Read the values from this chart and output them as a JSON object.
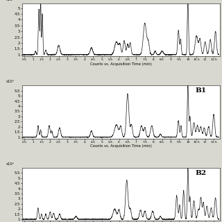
{
  "x_min": 0.5,
  "x_max": 11.75,
  "x_ticks": [
    0.5,
    1.0,
    1.5,
    2.0,
    2.5,
    3.0,
    3.5,
    4.0,
    4.5,
    5.0,
    5.5,
    6.0,
    6.5,
    7.0,
    7.5,
    8.0,
    8.5,
    9.0,
    9.5,
    10.0,
    10.5,
    11.0,
    11.5
  ],
  "xlabel": "Counts vs. Acquisition Time (min)",
  "panel1_ylim": [
    0.85,
    5.4
  ],
  "panel1_yticks": [
    1.0,
    1.5,
    2.0,
    2.5,
    3.0,
    3.5,
    4.0,
    4.5,
    5.0
  ],
  "panel2_ylim": [
    0.85,
    6.0
  ],
  "panel2_yticks": [
    1.0,
    1.5,
    2.0,
    2.5,
    3.0,
    3.5,
    4.0,
    4.5,
    5.0,
    5.5
  ],
  "panel3_ylim": [
    0.85,
    6.0
  ],
  "panel3_yticks": [
    1.0,
    1.5,
    2.0,
    2.5,
    3.0,
    3.5,
    4.0,
    4.5,
    5.0,
    5.5
  ],
  "label_B1": "B1",
  "label_B2": "B2",
  "line_color": "#1a1a1a",
  "bg_color": "#ffffff",
  "linewidth": 0.5,
  "seed": 42,
  "fig_bg": "#d8d8d0"
}
